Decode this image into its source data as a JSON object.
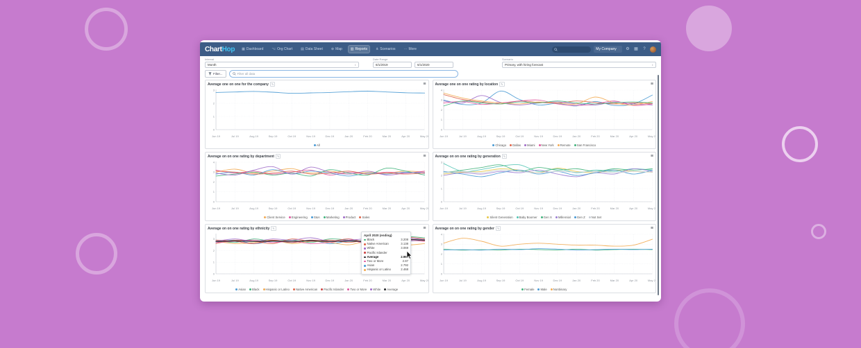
{
  "page_background": "#c67bce",
  "icons": {
    "dashboard": "▦",
    "org_chart": "⌥",
    "data_sheet": "▤",
    "map": "⊕",
    "reports": "▥",
    "scenarios": "⋔",
    "more_dots": "⋯",
    "edit": "✎",
    "menu": "≡",
    "updown": "↕",
    "gear": "⚙",
    "apps": "▦",
    "help": "?"
  },
  "navbar": {
    "logo_part1": "Chart",
    "logo_part2": "Hop",
    "items": [
      {
        "label": "Dashboard",
        "icon": "dashboard",
        "active": false
      },
      {
        "label": "Org Chart",
        "icon": "org_chart",
        "active": false
      },
      {
        "label": "Data Sheet",
        "icon": "data_sheet",
        "active": false
      },
      {
        "label": "Map",
        "icon": "map",
        "active": false
      },
      {
        "label": "Reports",
        "icon": "reports",
        "active": true
      },
      {
        "label": "Scenarios",
        "icon": "scenarios",
        "active": false
      },
      {
        "label": "More",
        "icon": "more_dots",
        "active": false
      }
    ],
    "company_selector": "My Company"
  },
  "filters": {
    "interval_label": "Interval",
    "interval_value": "Month",
    "date_range_label": "Date Range",
    "date_start": "6/1/2019",
    "date_end": "6/1/2020",
    "scenario_label": "Scenario",
    "scenario_value": "Primary, with hiring forecast",
    "filter_button": "Filter...",
    "search_placeholder": "Filter all data"
  },
  "chart_data": {
    "type": "line",
    "shared_categories": [
      "Jun 19",
      "Jul 19",
      "Aug 19",
      "Sep 19",
      "Oct 19",
      "Nov 19",
      "Dec 19",
      "Jan 20",
      "Feb 20",
      "Mar 20",
      "Apr 20",
      "May 20"
    ],
    "charts": [
      {
        "type": "line",
        "title": "Average one on one for the company",
        "ylim": [
          0,
          3
        ],
        "axis_max": 3,
        "yticks": [
          0,
          1,
          2,
          3
        ],
        "legend_position": "bottom",
        "series": [
          {
            "name": "All",
            "color": "#4a9ad4",
            "values": [
              2.82,
              2.86,
              2.9,
              2.84,
              2.76,
              2.79,
              2.82,
              2.88,
              2.92,
              2.86,
              2.8,
              2.78
            ]
          }
        ]
      },
      {
        "type": "line",
        "title": "Average one on one rating by location",
        "ylim": [
          0,
          4
        ],
        "axis_max": 4,
        "yticks": [
          0,
          1,
          2,
          3,
          4
        ],
        "legend_position": "bottom",
        "series": [
          {
            "name": "Chicago",
            "color": "#4a9ad4",
            "values": [
              3.0,
              2.55,
              2.7,
              3.9,
              3.05,
              2.5,
              2.65,
              2.4,
              2.85,
              2.45,
              2.6,
              3.5
            ]
          },
          {
            "name": "Dallas",
            "color": "#e0654a",
            "values": [
              3.55,
              3.05,
              2.8,
              2.6,
              2.9,
              2.75,
              2.7,
              2.9,
              2.75,
              2.6,
              2.7,
              2.62
            ]
          },
          {
            "name": "Miami",
            "color": "#a06cc9",
            "values": [
              2.9,
              2.7,
              3.45,
              2.75,
              2.5,
              2.7,
              2.8,
              2.6,
              2.5,
              2.8,
              2.6,
              2.5
            ]
          },
          {
            "name": "New York",
            "color": "#e0569e",
            "values": [
              2.7,
              2.85,
              2.55,
              2.7,
              2.9,
              3.0,
              2.6,
              2.45,
              2.6,
              2.9,
              2.45,
              2.6
            ]
          },
          {
            "name": "Remote",
            "color": "#f2ab54",
            "values": [
              3.7,
              3.2,
              2.9,
              2.7,
              2.6,
              2.8,
              2.7,
              2.6,
              3.3,
              2.7,
              2.5,
              2.85
            ]
          },
          {
            "name": "San Francisco",
            "color": "#44b47e",
            "values": [
              2.4,
              2.9,
              2.7,
              2.6,
              2.8,
              2.7,
              2.9,
              2.7,
              2.6,
              2.72,
              2.8,
              2.7
            ]
          }
        ]
      },
      {
        "type": "line",
        "title": "Average on on one rating by department",
        "ylim": [
          0,
          4
        ],
        "axis_max": 4,
        "yticks": [
          0,
          1,
          2,
          3,
          4
        ],
        "legend_position": "bottom",
        "series": [
          {
            "name": "Client Service",
            "color": "#f2ab54",
            "values": [
              3.0,
              3.3,
              2.9,
              3.1,
              3.35,
              2.9,
              3.1,
              2.8,
              3.0,
              2.9,
              3.1,
              3.0
            ]
          },
          {
            "name": "Engineering",
            "color": "#e0569e",
            "values": [
              3.2,
              2.9,
              3.1,
              2.8,
              3.0,
              3.2,
              2.7,
              3.0,
              2.8,
              3.0,
              2.9,
              3.1
            ]
          },
          {
            "name": "G&A",
            "color": "#4a9ad4",
            "values": [
              2.8,
              3.0,
              2.7,
              3.25,
              2.8,
              3.1,
              2.9,
              2.6,
              2.9,
              2.8,
              3.0,
              2.85
            ]
          },
          {
            "name": "Marketing",
            "color": "#44b47e",
            "values": [
              2.6,
              2.8,
              3.0,
              2.7,
              2.9,
              2.6,
              3.25,
              2.9,
              2.7,
              3.4,
              3.1,
              2.7
            ]
          },
          {
            "name": "Product",
            "color": "#a06cc9",
            "values": [
              2.9,
              2.7,
              3.2,
              3.55,
              2.8,
              3.5,
              3.0,
              2.8,
              3.1,
              2.7,
              2.9,
              3.0
            ]
          },
          {
            "name": "Sales",
            "color": "#e0654a",
            "values": [
              3.1,
              3.0,
              2.8,
              2.9,
              3.1,
              2.8,
              2.9,
              3.1,
              2.8,
              2.9,
              2.8,
              2.9
            ]
          }
        ]
      },
      {
        "type": "line",
        "title": "Average on on one rating by generation",
        "ylim": [
          0,
          3
        ],
        "axis_max": 3,
        "yticks": [
          0,
          1,
          2,
          3
        ],
        "legend_position": "bottom",
        "series": [
          {
            "name": "Silent Generation",
            "color": "#e8c84a",
            "values": [
              2.1,
              2.25,
              2.3,
              2.5,
              2.4,
              2.2,
              2.55,
              2.3,
              2.2,
              2.4,
              2.3,
              2.25
            ]
          },
          {
            "name": "Baby Boomer",
            "color": "#52c4b4",
            "values": [
              2.9,
              2.3,
              2.45,
              2.7,
              2.8,
              2.3,
              2.5,
              2.2,
              2.4,
              2.3,
              2.5,
              2.4
            ]
          },
          {
            "name": "Gen X",
            "color": "#44b47e",
            "values": [
              2.2,
              2.4,
              2.6,
              2.8,
              2.3,
              2.6,
              2.4,
              2.5,
              2.3,
              2.5,
              2.4,
              2.5
            ]
          },
          {
            "name": "Millennial",
            "color": "#9d7fd4",
            "values": [
              2.0,
              2.2,
              2.1,
              2.3,
              2.2,
              2.4,
              2.1,
              1.9,
              2.2,
              2.1,
              2.5,
              2.3
            ]
          },
          {
            "name": "Gen Z",
            "color": "#4a9ad4",
            "values": [
              2.3,
              2.1,
              1.9,
              2.2,
              2.4,
              2.1,
              2.3,
              2.0,
              2.2,
              2.4,
              2.1,
              2.4
            ]
          },
          {
            "name": "Not Set",
            "color": "#c6ccd3",
            "values": [
              2.2,
              2.3,
              2.2,
              2.4,
              2.3,
              2.2,
              2.3,
              2.25,
              2.3,
              2.2,
              2.3,
              2.25
            ]
          }
        ]
      },
      {
        "type": "line",
        "title": "Average on on one rating by ethnicity",
        "ylim": [
          0,
          3.4
        ],
        "axis_max": 3.4,
        "yticks": [
          0,
          1,
          2,
          3
        ],
        "legend_position": "bottom",
        "hover_index": 10,
        "series": [
          {
            "name": "Asian",
            "color": "#4a9ad4",
            "values": [
              2.7,
              2.9,
              2.6,
              2.8,
              2.7,
              2.9,
              2.6,
              2.8,
              2.7,
              2.6,
              2.792,
              2.9
            ]
          },
          {
            "name": "Black",
            "color": "#44b47e",
            "values": [
              2.9,
              2.7,
              3.0,
              2.8,
              2.9,
              2.7,
              3.0,
              2.9,
              2.8,
              3.0,
              3.208,
              3.1
            ]
          },
          {
            "name": "Hispanic or Latino",
            "color": "#f2ab54",
            "values": [
              2.8,
              2.6,
              2.7,
              2.9,
              2.6,
              2.8,
              2.7,
              2.5,
              2.8,
              2.6,
              2.468,
              2.6
            ]
          },
          {
            "name": "Native American",
            "color": "#e0654a",
            "values": [
              2.6,
              2.9,
              2.8,
              2.6,
              3.0,
              2.8,
              2.9,
              2.7,
              2.9,
              2.8,
              3.138,
              3.0
            ]
          },
          {
            "name": "Pacific Islander",
            "color": "#cc4444",
            "values": [
              2.9,
              2.8,
              2.6,
              2.9,
              2.7,
              2.9,
              2.8,
              3.0,
              2.7,
              2.9,
              3.0,
              2.85
            ]
          },
          {
            "name": "Two or More",
            "color": "#e0569e",
            "values": [
              2.7,
              2.8,
              2.9,
              2.7,
              2.8,
              2.6,
              2.7,
              2.9,
              2.6,
              2.7,
              2.87,
              2.8
            ]
          },
          {
            "name": "White",
            "color": "#a06cc9",
            "values": [
              2.8,
              3.0,
              2.8,
              3.0,
              2.9,
              3.1,
              2.8,
              2.9,
              3.0,
              2.9,
              3.069,
              2.95
            ]
          },
          {
            "name": "Average",
            "color": "#26282b",
            "bold": true,
            "values": [
              2.78,
              2.83,
              2.79,
              2.82,
              2.8,
              2.84,
              2.79,
              2.83,
              2.79,
              2.81,
              2.951,
              2.9
            ]
          }
        ],
        "tooltip": {
          "title": "April 2020 (ending)",
          "rows": [
            {
              "label": "Black",
              "value": "3.208",
              "color": "#44b47e",
              "bold": false
            },
            {
              "label": "Native American",
              "value": "3.138",
              "color": "#e0654a",
              "bold": false
            },
            {
              "label": "White",
              "value": "3.069",
              "color": "#a06cc9",
              "bold": false
            },
            {
              "label": "Pacific Islander",
              "value": "3",
              "color": "#cc4444",
              "bold": false
            },
            {
              "label": "Average",
              "value": "2.951",
              "color": "#26282b",
              "bold": true
            },
            {
              "label": "Two or More",
              "value": "2.87",
              "color": "#e0569e",
              "bold": false
            },
            {
              "label": "Asian",
              "value": "2.792",
              "color": "#4a9ad4",
              "bold": false
            },
            {
              "label": "Hispanic or Latino",
              "value": "2.468",
              "color": "#f2ab54",
              "bold": false
            }
          ]
        }
      },
      {
        "type": "line",
        "title": "Average on on one rating by gender",
        "ylim": [
          0,
          4
        ],
        "axis_max": 4,
        "yticks": [
          0,
          1,
          2,
          3,
          4
        ],
        "legend_position": "bottom",
        "series": [
          {
            "name": "Female",
            "color": "#44b47e",
            "values": [
              2.5,
              2.4,
              2.45,
              2.4,
              2.5,
              2.45,
              2.4,
              2.5,
              2.4,
              2.45,
              2.5,
              2.45
            ]
          },
          {
            "name": "Male",
            "color": "#4a9ad4",
            "values": [
              2.4,
              2.45,
              2.4,
              2.5,
              2.45,
              2.55,
              2.5,
              2.4,
              2.45,
              2.5,
              2.45,
              2.5
            ]
          },
          {
            "name": "Nonbinary",
            "color": "#f2ab54",
            "values": [
              3.1,
              3.6,
              3.3,
              2.8,
              3.0,
              3.1,
              3.0,
              2.9,
              2.9,
              2.8,
              2.9,
              3.5
            ]
          }
        ]
      }
    ]
  }
}
